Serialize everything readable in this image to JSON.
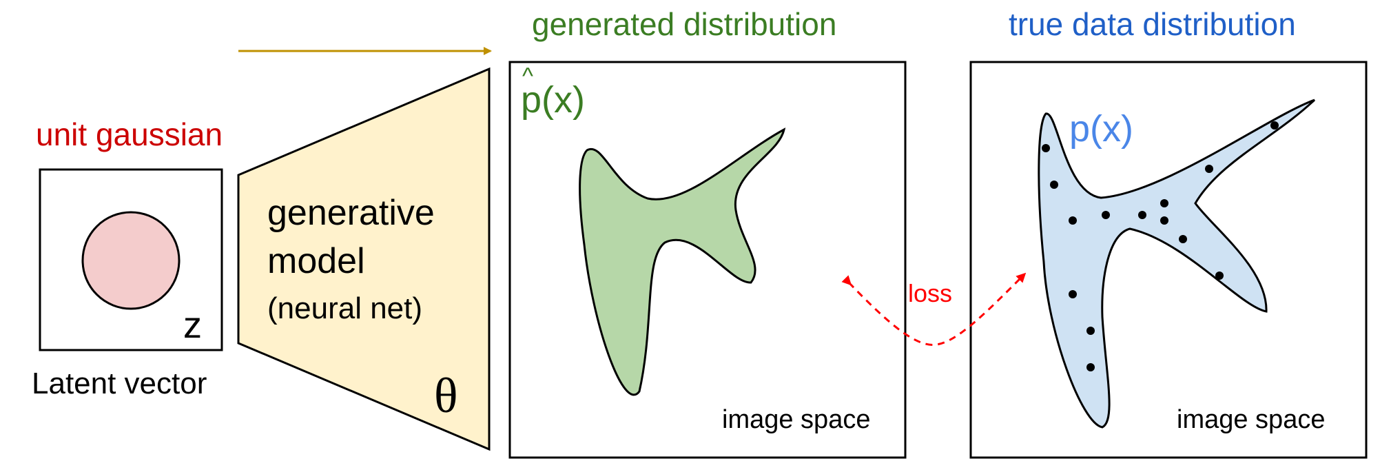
{
  "latent": {
    "title": "unit gaussian",
    "variable": "z",
    "caption": "Latent vector"
  },
  "model": {
    "line1": "generative",
    "line2": "model",
    "line3": "(neural net)",
    "param": "θ"
  },
  "generated": {
    "title": "generated distribution",
    "density_hat": "^",
    "density": "p(x)",
    "space_label": "image space"
  },
  "true_data": {
    "title": "true data distribution",
    "density": "p(x)",
    "space_label": "image space"
  },
  "loss": {
    "label": "loss"
  },
  "colors": {
    "unit_gaussian_text": "#cc0000",
    "gaussian_fill": "#f4cccc",
    "model_fill": "#fff2cc",
    "arrow": "#bf9000",
    "generated_text": "#3b7d23",
    "generated_fill": "#b6d7a8",
    "true_text": "#1f5fc7",
    "true_fill": "#cfe2f3",
    "density_text": "#4a86e8",
    "loss": "#ff0000"
  }
}
